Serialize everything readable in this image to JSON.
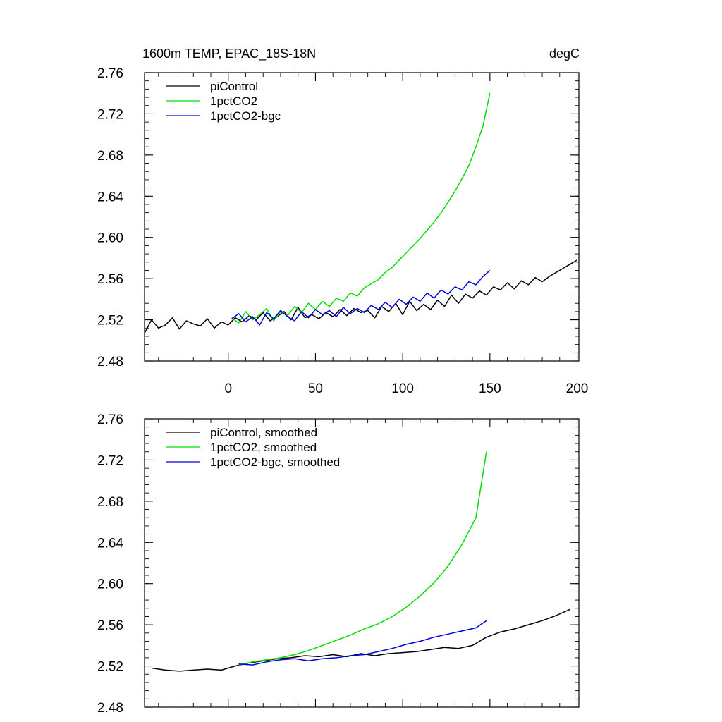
{
  "chart_data": [
    {
      "type": "line",
      "title": "1600m TEMP, EPAC_18S-18N",
      "units": "degC",
      "xlim": [
        -48,
        201
      ],
      "ylim": [
        2.48,
        2.76
      ],
      "xticks": [
        0,
        50,
        100,
        150,
        200
      ],
      "xtick_labels": [
        "0",
        "50",
        "100",
        "150",
        "200"
      ],
      "yticks": [
        2.48,
        2.52,
        2.56,
        2.6,
        2.64,
        2.68,
        2.72,
        2.76
      ],
      "ytick_labels": [
        "2.48",
        "2.52",
        "2.56",
        "2.60",
        "2.64",
        "2.68",
        "2.72",
        "2.76"
      ],
      "legend_position": "top-left",
      "series": [
        {
          "name": "piControl",
          "color": "#000000",
          "x": [
            -48,
            -44,
            -40,
            -36,
            -32,
            -28,
            -24,
            -20,
            -16,
            -12,
            -8,
            -4,
            0,
            4,
            8,
            12,
            16,
            20,
            24,
            28,
            32,
            36,
            40,
            44,
            48,
            52,
            56,
            60,
            64,
            68,
            72,
            76,
            80,
            84,
            88,
            92,
            96,
            100,
            104,
            108,
            112,
            116,
            120,
            124,
            128,
            132,
            136,
            140,
            144,
            148,
            152,
            156,
            160,
            164,
            168,
            172,
            176,
            180,
            184,
            188,
            192,
            196,
            200
          ],
          "y": [
            2.507,
            2.52,
            2.512,
            2.515,
            2.522,
            2.511,
            2.519,
            2.516,
            2.514,
            2.521,
            2.512,
            2.518,
            2.515,
            2.522,
            2.518,
            2.524,
            2.52,
            2.527,
            2.519,
            2.523,
            2.528,
            2.52,
            2.532,
            2.522,
            2.525,
            2.521,
            2.527,
            2.523,
            2.53,
            2.524,
            2.531,
            2.527,
            2.529,
            2.522,
            2.533,
            2.528,
            2.536,
            2.525,
            2.538,
            2.529,
            2.535,
            2.53,
            2.539,
            2.533,
            2.544,
            2.536,
            2.545,
            2.541,
            2.548,
            2.544,
            2.552,
            2.549,
            2.556,
            2.55,
            2.558,
            2.554,
            2.561,
            2.557,
            2.562,
            2.566,
            2.57,
            2.574,
            2.578
          ]
        },
        {
          "name": "1pctCO2",
          "color": "#00dd00",
          "x": [
            2,
            6,
            10,
            14,
            18,
            22,
            26,
            30,
            34,
            38,
            42,
            46,
            50,
            54,
            58,
            62,
            66,
            70,
            74,
            78,
            82,
            86,
            90,
            94,
            98,
            102,
            106,
            110,
            114,
            118,
            122,
            126,
            130,
            134,
            138,
            142,
            146,
            150
          ],
          "y": [
            2.522,
            2.517,
            2.528,
            2.52,
            2.525,
            2.531,
            2.519,
            2.528,
            2.524,
            2.533,
            2.527,
            2.536,
            2.53,
            2.538,
            2.533,
            2.541,
            2.538,
            2.546,
            2.543,
            2.551,
            2.555,
            2.559,
            2.566,
            2.571,
            2.578,
            2.585,
            2.592,
            2.599,
            2.607,
            2.615,
            2.624,
            2.634,
            2.645,
            2.657,
            2.67,
            2.688,
            2.708,
            2.74
          ]
        },
        {
          "name": "1pctCO2-bgc",
          "color": "#0000dd",
          "x": [
            2,
            6,
            10,
            14,
            18,
            22,
            26,
            30,
            34,
            38,
            42,
            46,
            50,
            54,
            58,
            62,
            66,
            70,
            74,
            78,
            82,
            86,
            90,
            94,
            98,
            102,
            106,
            110,
            114,
            118,
            122,
            126,
            130,
            134,
            138,
            142,
            146,
            150
          ],
          "y": [
            2.521,
            2.526,
            2.518,
            2.523,
            2.515,
            2.527,
            2.521,
            2.529,
            2.523,
            2.519,
            2.528,
            2.522,
            2.53,
            2.525,
            2.529,
            2.523,
            2.532,
            2.526,
            2.531,
            2.527,
            2.534,
            2.53,
            2.537,
            2.532,
            2.54,
            2.535,
            2.542,
            2.538,
            2.546,
            2.541,
            2.549,
            2.545,
            2.552,
            2.549,
            2.557,
            2.554,
            2.562,
            2.568
          ]
        }
      ]
    },
    {
      "type": "line",
      "title": "",
      "units": "",
      "xlim": [
        -48,
        201
      ],
      "ylim": [
        2.48,
        2.76
      ],
      "xticks": [
        0,
        50,
        100,
        150,
        200
      ],
      "xtick_labels": [],
      "yticks": [
        2.48,
        2.52,
        2.56,
        2.6,
        2.64,
        2.68,
        2.72,
        2.76
      ],
      "ytick_labels": [
        "2.48",
        "2.52",
        "2.56",
        "2.60",
        "2.64",
        "2.68",
        "2.72",
        "2.76"
      ],
      "legend_position": "top-left",
      "series": [
        {
          "name": "piControl, smoothed",
          "color": "#000000",
          "x": [
            -44,
            -36,
            -28,
            -20,
            -12,
            -4,
            4,
            12,
            20,
            28,
            36,
            44,
            52,
            60,
            68,
            76,
            84,
            92,
            100,
            108,
            116,
            124,
            132,
            140,
            148,
            156,
            164,
            172,
            180,
            188,
            196
          ],
          "y": [
            2.518,
            2.516,
            2.515,
            2.516,
            2.517,
            2.516,
            2.52,
            2.523,
            2.525,
            2.527,
            2.528,
            2.53,
            2.529,
            2.531,
            2.529,
            2.532,
            2.53,
            2.532,
            2.533,
            2.534,
            2.536,
            2.538,
            2.537,
            2.54,
            2.548,
            2.553,
            2.556,
            2.56,
            2.564,
            2.569,
            2.575
          ]
        },
        {
          "name": "1pctCO2, smoothed",
          "color": "#00dd00",
          "x": [
            6,
            14,
            22,
            30,
            38,
            46,
            54,
            62,
            70,
            78,
            86,
            94,
            102,
            110,
            118,
            126,
            134,
            142,
            148
          ],
          "y": [
            2.521,
            2.524,
            2.526,
            2.528,
            2.531,
            2.535,
            2.54,
            2.545,
            2.55,
            2.556,
            2.561,
            2.568,
            2.577,
            2.588,
            2.601,
            2.617,
            2.638,
            2.664,
            2.728
          ]
        },
        {
          "name": "1pctCO2-bgc, smoothed",
          "color": "#0000dd",
          "x": [
            6,
            14,
            22,
            30,
            38,
            46,
            54,
            62,
            70,
            78,
            86,
            94,
            102,
            110,
            118,
            126,
            134,
            142,
            148
          ],
          "y": [
            2.522,
            2.521,
            2.524,
            2.526,
            2.527,
            2.525,
            2.527,
            2.528,
            2.53,
            2.531,
            2.534,
            2.537,
            2.541,
            2.544,
            2.548,
            2.551,
            2.554,
            2.557,
            2.564
          ]
        }
      ]
    }
  ]
}
